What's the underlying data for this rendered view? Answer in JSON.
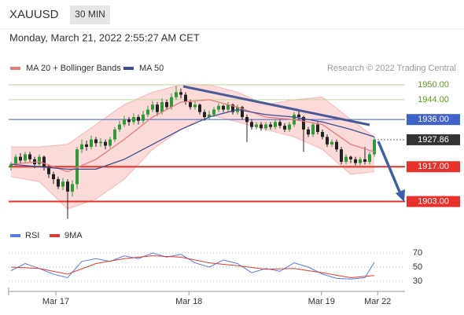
{
  "header": {
    "symbol": "XAUUSD",
    "timeframe": "30 MIN",
    "date": "Monday, March 21, 2022 2:55:27 AM CET",
    "credit": "Research © 2022 Trading Central"
  },
  "chart_data": [
    {
      "type": "candlestick",
      "x": [
        0,
        1,
        2,
        3,
        4,
        5,
        6,
        7,
        8,
        9,
        10,
        11,
        12,
        13,
        14,
        15,
        16,
        17,
        18,
        19,
        20,
        21,
        22,
        23,
        24,
        25,
        26,
        27,
        28,
        29,
        30,
        31,
        32,
        33,
        34,
        35,
        36,
        37,
        38,
        39,
        40,
        41,
        42,
        43,
        44,
        45,
        46,
        47,
        48,
        49,
        50,
        51,
        52,
        53,
        54,
        55,
        56,
        57,
        58,
        59,
        60,
        61,
        62,
        63,
        64,
        65,
        66,
        67,
        68,
        69,
        70,
        71,
        72,
        73,
        74,
        75,
        76,
        77
      ],
      "open": [
        1917,
        1918,
        1921,
        1919.5,
        1922,
        1920,
        1918,
        1921,
        1917,
        1914,
        1912,
        1909,
        1911,
        1907,
        1910,
        1924,
        1926,
        1925,
        1928,
        1926.5,
        1927,
        1925.5,
        1928,
        1932,
        1934,
        1936,
        1935,
        1937,
        1935.5,
        1938,
        1940,
        1942,
        1939,
        1943,
        1941,
        1945,
        1947,
        1946,
        1943,
        1941,
        1942,
        1939,
        1937,
        1938,
        1940,
        1941.5,
        1940,
        1942,
        1939,
        1941,
        1937,
        1935,
        1933,
        1934,
        1932.5,
        1934,
        1933,
        1935,
        1933.5,
        1932,
        1934,
        1938,
        1937,
        1932,
        1930,
        1934,
        1931,
        1929,
        1926,
        1927,
        1924,
        1919,
        1921,
        1920,
        1918.5,
        1920,
        1919,
        1922
      ],
      "high": [
        1919,
        1922,
        1922.5,
        1923,
        1923,
        1921,
        1922,
        1921.5,
        1918,
        1915,
        1913,
        1912.5,
        1912,
        1911.5,
        1925,
        1928,
        1927.5,
        1929.5,
        1929,
        1928.5,
        1928,
        1929,
        1933,
        1935.5,
        1937.5,
        1937,
        1938.5,
        1938,
        1939.5,
        1941.5,
        1943.5,
        1943,
        1944.5,
        1944,
        1946.5,
        1949.5,
        1948.5,
        1947,
        1944,
        1943.5,
        1942.5,
        1940,
        1939.5,
        1941,
        1942.5,
        1942,
        1943,
        1942.5,
        1942,
        1941.5,
        1938,
        1936,
        1935,
        1935,
        1935,
        1935,
        1936,
        1936,
        1934.5,
        1935,
        1939,
        1940,
        1937.5,
        1933,
        1935,
        1935,
        1932,
        1930,
        1928,
        1928,
        1925,
        1922,
        1921.5,
        1921,
        1921,
        1925,
        1923,
        1929
      ],
      "low": [
        1915.5,
        1917,
        1918.5,
        1918.5,
        1919,
        1916.5,
        1917,
        1915.5,
        1912.5,
        1910,
        1908,
        1907.5,
        1896,
        1905,
        1908,
        1922.5,
        1923.5,
        1924,
        1925,
        1925,
        1924,
        1924.5,
        1927,
        1931,
        1933,
        1933.5,
        1934,
        1934,
        1934.5,
        1937,
        1939,
        1937.5,
        1938,
        1940,
        1940,
        1944,
        1944.5,
        1942,
        1940,
        1940,
        1938,
        1935.5,
        1936,
        1937,
        1939,
        1939,
        1939,
        1938,
        1938,
        1936,
        1927,
        1932,
        1932,
        1931.5,
        1931.5,
        1932,
        1932,
        1932.5,
        1931,
        1931,
        1933,
        1935.5,
        1923,
        1929,
        1929,
        1930,
        1928,
        1925,
        1925,
        1923,
        1918,
        1918,
        1918.5,
        1917.5,
        1917.5,
        1918,
        1918,
        1921
      ],
      "close": [
        1918,
        1921,
        1919.5,
        1922,
        1920,
        1918,
        1921,
        1917,
        1914,
        1912,
        1909,
        1911,
        1907,
        1910,
        1924,
        1926,
        1925,
        1928,
        1926.5,
        1927,
        1925.5,
        1928,
        1932,
        1934,
        1936,
        1935,
        1937,
        1935.5,
        1938,
        1940,
        1942,
        1939,
        1943,
        1941,
        1945,
        1947,
        1946,
        1943,
        1941,
        1942,
        1939,
        1937,
        1938,
        1940,
        1941.5,
        1940,
        1942,
        1939,
        1941,
        1937,
        1935,
        1933,
        1934,
        1932.5,
        1934,
        1933,
        1935,
        1933.5,
        1932,
        1934,
        1938,
        1937,
        1932,
        1930,
        1934,
        1931,
        1929,
        1926,
        1927,
        1924,
        1919,
        1921,
        1920,
        1918.5,
        1920,
        1919,
        1922,
        1927.86
      ],
      "up_color": "#2e9a3a",
      "down_color": "#222222",
      "series": [
        {
          "name": "MA 20 + Bollinger Bands",
          "color": "#e87c7c",
          "band_color": "#fbdada",
          "x": [
            0,
            6,
            12,
            18,
            24,
            30,
            36,
            42,
            48,
            54,
            60,
            66,
            72,
            77
          ],
          "values": [
            1918,
            1919,
            1915,
            1920,
            1928,
            1937,
            1943,
            1944,
            1941,
            1937,
            1936,
            1934,
            1926,
            1923
          ],
          "upper": [
            1925,
            1925,
            1926,
            1934,
            1942,
            1947,
            1950,
            1950,
            1947,
            1942,
            1944,
            1945,
            1936,
            1929
          ],
          "lower": [
            1913,
            1911,
            1900,
            1904,
            1912,
            1924,
            1932,
            1938,
            1935,
            1932,
            1929,
            1924,
            1914,
            1915
          ]
        },
        {
          "name": "MA 50",
          "color": "#3d4f8f",
          "x": [
            0,
            6,
            12,
            18,
            24,
            30,
            36,
            42,
            48,
            54,
            60,
            66,
            72,
            77
          ],
          "values": [
            1918,
            1917,
            1916,
            1916,
            1920,
            1926,
            1932,
            1937,
            1940,
            1938,
            1937,
            1935,
            1932,
            1929
          ]
        }
      ],
      "levels": [
        {
          "value": 1950,
          "label": "1950.00",
          "color": "#5c9a1e",
          "line_color": "#bcd9a0",
          "style": "text"
        },
        {
          "value": 1944,
          "label": "1944.00",
          "color": "#5c9a1e",
          "line_color": "#bcd9a0",
          "style": "text"
        },
        {
          "value": 1936,
          "label": "1936.00",
          "color": "#3f63c8",
          "line_color": "#3f63c8",
          "style": "box"
        },
        {
          "value": 1927.86,
          "color": "#333333",
          "line_color": "#666666",
          "style": "dotted"
        },
        {
          "value": 1917,
          "label": "1917.00",
          "color": "#e8312a",
          "line_color": "#e8312a",
          "style": "box"
        },
        {
          "value": 1903,
          "label": "1903.00",
          "color": "#e8312a",
          "line_color": "#e8312a",
          "style": "box"
        }
      ],
      "xlim": [
        -0.5,
        83.5
      ],
      "ylim": [
        1894,
        1952.5
      ],
      "xticks": [
        {
          "value": 9.5,
          "label": "Mar 17"
        },
        {
          "value": 37.7,
          "label": "Mar 18"
        },
        {
          "value": 65.8,
          "label": "Mar 19"
        },
        {
          "value": 77.7,
          "label": "Mar 22"
        }
      ]
    },
    {
      "type": "line",
      "series": [
        {
          "name": "RSI",
          "color": "#5a7be0",
          "x": [
            0,
            3,
            6,
            9,
            12,
            15,
            18,
            21,
            24,
            27,
            30,
            33,
            36,
            39,
            42,
            45,
            48,
            51,
            54,
            57,
            60,
            63,
            66,
            69,
            72,
            75,
            77
          ],
          "values": [
            45,
            55,
            48,
            40,
            35,
            58,
            62,
            58,
            66,
            62,
            70,
            64,
            68,
            56,
            50,
            60,
            55,
            42,
            48,
            44,
            56,
            50,
            40,
            34,
            33,
            35,
            57
          ]
        },
        {
          "name": "9MA",
          "color": "#e03a2e",
          "x": [
            0,
            6,
            12,
            18,
            24,
            30,
            36,
            42,
            48,
            54,
            60,
            66,
            72,
            77
          ],
          "values": [
            50,
            48,
            40,
            55,
            62,
            66,
            64,
            56,
            52,
            47,
            48,
            42,
            35,
            38
          ]
        }
      ],
      "xlim": [
        -0.5,
        83.5
      ],
      "ylim": [
        16.7,
        81.1
      ],
      "yticks": [
        30,
        50,
        70
      ]
    }
  ]
}
